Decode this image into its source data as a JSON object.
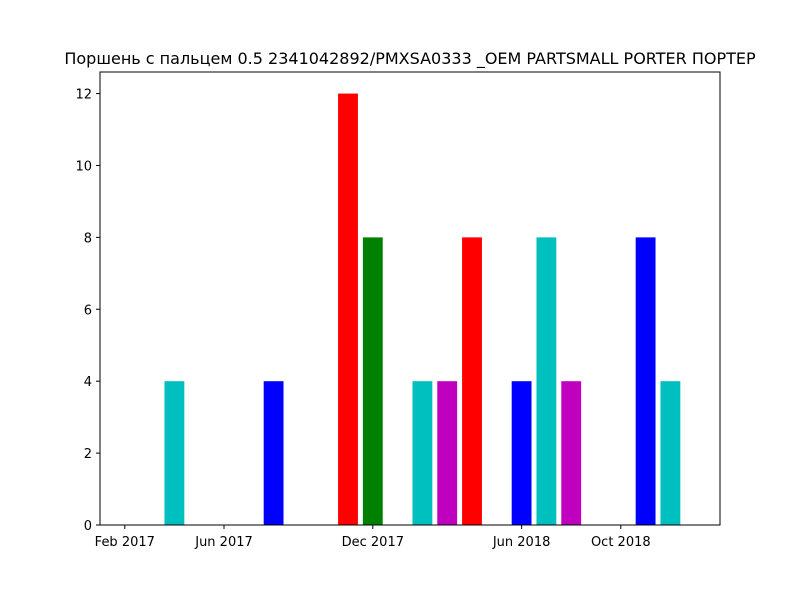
{
  "chart_data": {
    "type": "bar",
    "title": "Поршень с пальцем 0.5  2341042892/PMXSA0333 _OEM  PARTSMALL PORTER ПОРТЕР",
    "xlabel": "",
    "ylabel": "",
    "x_tick_labels": [
      {
        "date": "2017-02",
        "label": "Feb 2017"
      },
      {
        "date": "2017-06",
        "label": "Jun 2017"
      },
      {
        "date": "2017-12",
        "label": "Dec 2017"
      },
      {
        "date": "2018-06",
        "label": "Jun 2018"
      },
      {
        "date": "2018-10",
        "label": "Oct 2018"
      }
    ],
    "xlim": [
      "2017-01",
      "2019-02"
    ],
    "ylim": [
      0,
      12.6
    ],
    "y_ticks": [
      0,
      2,
      4,
      6,
      8,
      10,
      12
    ],
    "grid": false,
    "bars": [
      {
        "date": "2017-02",
        "value": 0,
        "color": "#0000ff"
      },
      {
        "date": "2017-03",
        "value": 0,
        "color": "#008000"
      },
      {
        "date": "2017-04",
        "value": 4,
        "color": "#00bfbf"
      },
      {
        "date": "2017-05",
        "value": 0,
        "color": "#bf00bf"
      },
      {
        "date": "2017-06",
        "value": 0,
        "color": "#ff0000"
      },
      {
        "date": "2017-07",
        "value": 0,
        "color": "#008000"
      },
      {
        "date": "2017-08",
        "value": 4,
        "color": "#0000ff"
      },
      {
        "date": "2017-09",
        "value": 0,
        "color": "#00bfbf"
      },
      {
        "date": "2017-10",
        "value": 0,
        "color": "#bf00bf"
      },
      {
        "date": "2017-11",
        "value": 12,
        "color": "#ff0000"
      },
      {
        "date": "2017-12",
        "value": 8,
        "color": "#008000"
      },
      {
        "date": "2018-01",
        "value": 0,
        "color": "#0000ff"
      },
      {
        "date": "2018-02",
        "value": 4,
        "color": "#00bfbf"
      },
      {
        "date": "2018-03",
        "value": 4,
        "color": "#bf00bf"
      },
      {
        "date": "2018-04",
        "value": 8,
        "color": "#ff0000"
      },
      {
        "date": "2018-05",
        "value": 0,
        "color": "#008000"
      },
      {
        "date": "2018-06",
        "value": 4,
        "color": "#0000ff"
      },
      {
        "date": "2018-07",
        "value": 8,
        "color": "#00bfbf"
      },
      {
        "date": "2018-08",
        "value": 4,
        "color": "#bf00bf"
      },
      {
        "date": "2018-09",
        "value": 0,
        "color": "#ff0000"
      },
      {
        "date": "2018-10",
        "value": 0,
        "color": "#008000"
      },
      {
        "date": "2018-11",
        "value": 8,
        "color": "#0000ff"
      },
      {
        "date": "2018-12",
        "value": 4,
        "color": "#00bfbf"
      }
    ]
  }
}
